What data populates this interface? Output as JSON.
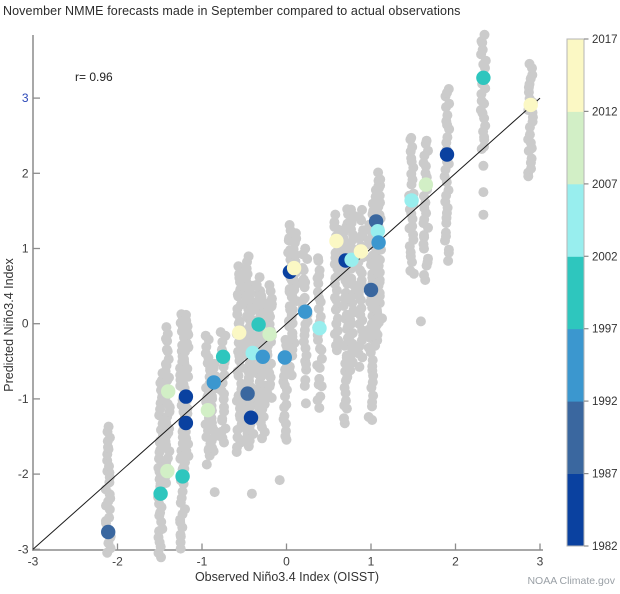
{
  "title": "November NMME forecasts made in September compared to actual observations",
  "annotation": "r= 0.96",
  "credit": "NOAA Climate.gov",
  "chart_data": {
    "type": "scatter",
    "title": "November NMME forecasts made in September compared to actual observations",
    "xlabel": "Observed Niño3.4 Index (OISST)",
    "ylabel": "Predicted Niño3.4 Index",
    "xlim": [
      -3,
      3
    ],
    "ylim": [
      -3,
      3.9
    ],
    "xticks": [
      -3,
      -2,
      -1,
      0,
      1,
      2,
      3
    ],
    "yticks": [
      -3,
      -2,
      -1,
      0,
      1,
      2,
      3
    ],
    "ytick_highlight": {
      "value": 3,
      "color": "#2b48b8"
    },
    "tick_label_color": "#3d3d3d",
    "axis_color": "#8c8c8c",
    "identity_line": true,
    "identity_line_color": "#1a1a1a",
    "correlation": 0.96,
    "ensemble_color": "#cbcbcb",
    "band_colors": {
      "navy": "#0a41a0",
      "steel": "#3a679f",
      "sky": "#3b97cf",
      "teal": "#2ec6be",
      "cyan": "#98eeee",
      "green": "#d2efc6",
      "yellow": "#fbf8c4"
    },
    "colorbar": {
      "labels_top_to_bottom": [
        "2017",
        "2012",
        "2007",
        "2002",
        "1997",
        "1992",
        "1987",
        "1982"
      ],
      "bands_bottom_to_top": [
        {
          "years": "1982-1987",
          "color": "#0a41a0"
        },
        {
          "years": "1987-1992",
          "color": "#3a679f"
        },
        {
          "years": "1992-1997",
          "color": "#3b97cf"
        },
        {
          "years": "1997-2002",
          "color": "#2ec6be"
        },
        {
          "years": "2002-2007",
          "color": "#98eeee"
        },
        {
          "years": "2007-2012",
          "color": "#d2efc6"
        },
        {
          "years": "2012-2017",
          "color": "#fbf8c4"
        }
      ]
    },
    "means": [
      {
        "x": -2.11,
        "y": -2.77,
        "band": "steel"
      },
      {
        "x": -1.49,
        "y": -2.26,
        "band": "teal"
      },
      {
        "x": -1.41,
        "y": -1.96,
        "band": "green"
      },
      {
        "x": -1.23,
        "y": -2.03,
        "band": "teal"
      },
      {
        "x": -1.4,
        "y": -0.9,
        "band": "green"
      },
      {
        "x": -1.19,
        "y": -0.97,
        "band": "navy"
      },
      {
        "x": -1.19,
        "y": -1.32,
        "band": "navy"
      },
      {
        "x": -0.93,
        "y": -1.15,
        "band": "green"
      },
      {
        "x": -0.86,
        "y": -0.78,
        "band": "sky"
      },
      {
        "x": -0.75,
        "y": -0.44,
        "band": "teal"
      },
      {
        "x": -0.46,
        "y": -0.93,
        "band": "steel"
      },
      {
        "x": -0.42,
        "y": -1.25,
        "band": "navy"
      },
      {
        "x": -0.56,
        "y": -0.12,
        "band": "yellow"
      },
      {
        "x": -0.33,
        "y": -0.01,
        "band": "teal"
      },
      {
        "x": -0.2,
        "y": -0.14,
        "band": "green"
      },
      {
        "x": -0.4,
        "y": -0.39,
        "band": "cyan"
      },
      {
        "x": -0.28,
        "y": -0.44,
        "band": "sky"
      },
      {
        "x": -0.02,
        "y": -0.45,
        "band": "sky"
      },
      {
        "x": 0.04,
        "y": 0.69,
        "band": "navy"
      },
      {
        "x": 0.09,
        "y": 0.74,
        "band": "yellow"
      },
      {
        "x": 0.22,
        "y": 0.16,
        "band": "sky"
      },
      {
        "x": 0.39,
        "y": -0.06,
        "band": "cyan"
      },
      {
        "x": 0.59,
        "y": 1.1,
        "band": "yellow"
      },
      {
        "x": 0.7,
        "y": 0.84,
        "band": "navy"
      },
      {
        "x": 0.77,
        "y": 0.85,
        "band": "cyan"
      },
      {
        "x": 0.88,
        "y": 0.96,
        "band": "yellow"
      },
      {
        "x": 1.06,
        "y": 1.36,
        "band": "steel"
      },
      {
        "x": 1.08,
        "y": 1.23,
        "band": "cyan"
      },
      {
        "x": 1.09,
        "y": 1.08,
        "band": "sky"
      },
      {
        "x": 1.0,
        "y": 0.45,
        "band": "steel"
      },
      {
        "x": 1.48,
        "y": 1.64,
        "band": "cyan"
      },
      {
        "x": 1.65,
        "y": 1.85,
        "band": "green"
      },
      {
        "x": 1.9,
        "y": 2.25,
        "band": "navy"
      },
      {
        "x": 2.33,
        "y": 3.27,
        "band": "teal"
      },
      {
        "x": 2.89,
        "y": 2.91,
        "band": "yellow"
      }
    ],
    "ensembles": [
      {
        "x": -2.11,
        "ymin": -3.05,
        "ymax": -1.38,
        "n": 28
      },
      {
        "x": -1.49,
        "ymin": -3.1,
        "ymax": -0.68,
        "n": 38
      },
      {
        "x": -1.41,
        "ymin": -2.1,
        "ymax": -0.05,
        "n": 32
      },
      {
        "x": -1.23,
        "ymin": -3.0,
        "ymax": 0.15,
        "n": 46
      },
      {
        "x": -1.19,
        "ymin": -1.9,
        "ymax": 0.1,
        "n": 30
      },
      {
        "x": -0.93,
        "ymin": -1.85,
        "ymax": -0.17,
        "n": 26
      },
      {
        "x": -0.86,
        "ymin": -1.7,
        "ymax": -0.55,
        "n": 18
      },
      {
        "x": -0.75,
        "ymin": -1.6,
        "ymax": -0.1,
        "n": 22
      },
      {
        "x": -0.56,
        "ymin": -1.7,
        "ymax": 0.76,
        "n": 36
      },
      {
        "x": -0.46,
        "ymin": -1.6,
        "ymax": 0.9,
        "n": 36
      },
      {
        "x": -0.42,
        "ymin": -1.55,
        "ymax": 0.5,
        "n": 30
      },
      {
        "x": -0.33,
        "ymin": -1.2,
        "ymax": 0.6,
        "n": 26
      },
      {
        "x": -0.28,
        "ymin": -1.5,
        "ymax": 0.4,
        "n": 28
      },
      {
        "x": -0.2,
        "ymin": -1.0,
        "ymax": 0.5,
        "n": 22
      },
      {
        "x": -0.02,
        "ymin": -1.55,
        "ymax": -0.2,
        "n": 20
      },
      {
        "x": 0.04,
        "ymin": -0.7,
        "ymax": 1.3,
        "n": 28
      },
      {
        "x": 0.09,
        "ymin": -0.4,
        "ymax": 1.2,
        "n": 22
      },
      {
        "x": 0.22,
        "ymin": -0.8,
        "ymax": 1.0,
        "n": 24
      },
      {
        "x": 0.39,
        "ymin": -1.1,
        "ymax": 0.9,
        "n": 26
      },
      {
        "x": 0.59,
        "ymin": -0.35,
        "ymax": 1.45,
        "n": 26
      },
      {
        "x": 0.7,
        "ymin": -1.3,
        "ymax": 1.5,
        "n": 38
      },
      {
        "x": 0.77,
        "ymin": -0.6,
        "ymax": 1.5,
        "n": 30
      },
      {
        "x": 0.88,
        "ymin": -0.55,
        "ymax": 1.5,
        "n": 28
      },
      {
        "x": 1.0,
        "ymin": -1.3,
        "ymax": 1.6,
        "n": 36
      },
      {
        "x": 1.06,
        "ymin": -0.3,
        "ymax": 2.0,
        "n": 32
      },
      {
        "x": 1.08,
        "ymin": 0.2,
        "ymax": 1.9,
        "n": 24
      },
      {
        "x": 1.09,
        "ymin": 0.0,
        "ymax": 1.8,
        "n": 20
      },
      {
        "x": 1.48,
        "ymin": 0.65,
        "ymax": 2.5,
        "n": 26
      },
      {
        "x": 1.65,
        "ymin": 0.6,
        "ymax": 2.45,
        "n": 26
      },
      {
        "x": 1.9,
        "ymin": 0.85,
        "ymax": 3.1,
        "n": 30
      },
      {
        "x": 2.33,
        "ymin": 2.3,
        "ymax": 3.85,
        "n": 24
      },
      {
        "x": 2.89,
        "ymin": 1.95,
        "ymax": 3.45,
        "n": 24
      }
    ],
    "ensemble_outliers": [
      [
        -0.85,
        -2.24
      ],
      [
        -0.41,
        -2.26
      ],
      [
        -0.08,
        -2.08
      ],
      [
        1.13,
        0.07
      ],
      [
        1.59,
        0.03
      ],
      [
        0.23,
        -1.06
      ],
      [
        2.33,
        1.45
      ],
      [
        2.33,
        1.75
      ],
      [
        2.33,
        2.1
      ],
      [
        1.9,
        3.07
      ]
    ]
  }
}
